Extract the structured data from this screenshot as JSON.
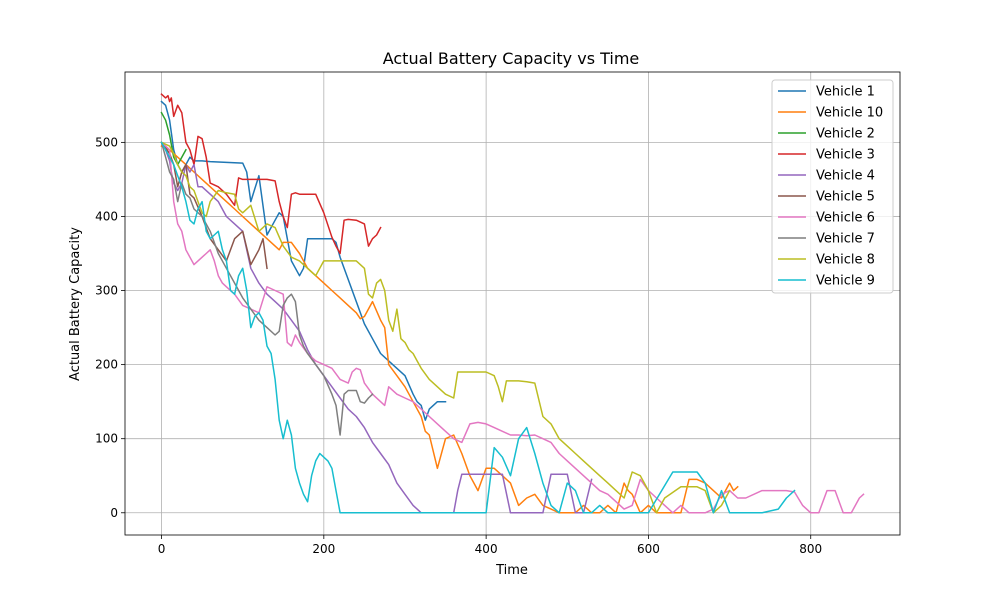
{
  "chart_data": {
    "type": "line",
    "title": "Actual Battery Capacity vs Time",
    "xlabel": "Time",
    "ylabel": "Actual Battery Capacity",
    "xlim": [
      -45,
      910
    ],
    "ylim": [
      -30,
      595
    ],
    "xticks": [
      0,
      200,
      400,
      600,
      800
    ],
    "yticks": [
      0,
      100,
      200,
      300,
      400,
      500
    ],
    "grid": true,
    "legend_position": "upper right",
    "series": [
      {
        "name": "Vehicle 1",
        "color": "#1f77b4",
        "x": [
          0,
          5,
          10,
          15,
          20,
          25,
          30,
          35,
          40,
          50,
          60,
          80,
          100,
          105,
          110,
          120,
          130,
          140,
          145,
          150,
          160,
          170,
          175,
          180,
          190,
          200,
          210,
          215,
          220,
          240,
          250,
          260,
          270,
          280,
          300,
          310,
          315,
          320,
          325,
          330,
          340,
          350
        ],
        "y": [
          555,
          550,
          530,
          490,
          470,
          460,
          470,
          480,
          475,
          475,
          474,
          473,
          472,
          460,
          420,
          455,
          375,
          395,
          405,
          400,
          340,
          320,
          330,
          370,
          370,
          370,
          370,
          365,
          345,
          285,
          255,
          235,
          215,
          205,
          185,
          160,
          150,
          145,
          125,
          140,
          150,
          150
        ]
      },
      {
        "name": "Vehicle 10",
        "color": "#ff7f0e",
        "x": [
          0,
          10,
          20,
          30,
          40,
          50,
          60,
          70,
          80,
          90,
          100,
          110,
          120,
          130,
          140,
          145,
          150,
          160,
          170,
          180,
          190,
          200,
          210,
          220,
          230,
          240,
          245,
          250,
          260,
          270,
          275,
          280,
          290,
          300,
          310,
          320,
          325,
          330,
          340,
          350,
          360,
          370,
          380,
          390,
          400,
          410,
          420,
          430,
          440,
          450,
          460,
          470,
          480,
          490,
          500,
          510,
          520,
          530,
          540,
          550,
          560,
          570,
          575,
          580,
          590,
          600,
          610,
          620,
          630,
          640,
          650,
          660,
          670,
          680,
          690,
          700,
          705,
          710
        ],
        "y": [
          495,
          490,
          480,
          470,
          460,
          450,
          440,
          430,
          420,
          410,
          400,
          390,
          380,
          370,
          360,
          355,
          365,
          365,
          350,
          330,
          320,
          310,
          300,
          290,
          280,
          270,
          262,
          265,
          285,
          260,
          250,
          200,
          185,
          170,
          150,
          130,
          110,
          105,
          60,
          100,
          105,
          80,
          50,
          30,
          60,
          60,
          50,
          40,
          10,
          20,
          25,
          10,
          5,
          0,
          0,
          0,
          10,
          0,
          0,
          10,
          0,
          40,
          30,
          25,
          0,
          10,
          0,
          0,
          0,
          0,
          45,
          45,
          40,
          30,
          20,
          40,
          30,
          35
        ]
      },
      {
        "name": "Vehicle 2",
        "color": "#2ca02c",
        "x": [
          0,
          5,
          10,
          15,
          20,
          25,
          30
        ],
        "y": [
          540,
          530,
          510,
          480,
          470,
          480,
          490
        ]
      },
      {
        "name": "Vehicle 3",
        "color": "#d62728",
        "x": [
          0,
          5,
          8,
          10,
          12,
          15,
          20,
          25,
          30,
          35,
          40,
          45,
          50,
          55,
          60,
          70,
          80,
          90,
          95,
          100,
          110,
          120,
          130,
          140,
          145,
          150,
          155,
          160,
          165,
          170,
          180,
          190,
          200,
          210,
          215,
          220,
          225,
          230,
          240,
          250,
          255,
          260,
          265,
          270
        ],
        "y": [
          565,
          560,
          563,
          555,
          560,
          535,
          550,
          540,
          500,
          490,
          470,
          508,
          505,
          480,
          445,
          440,
          430,
          415,
          452,
          450,
          450,
          450,
          450,
          448,
          420,
          400,
          385,
          430,
          432,
          430,
          430,
          430,
          405,
          372,
          360,
          350,
          395,
          396,
          395,
          390,
          360,
          370,
          375,
          385
        ]
      },
      {
        "name": "Vehicle 4",
        "color": "#9467bd",
        "x": [
          0,
          5,
          10,
          12,
          15,
          20,
          25,
          30,
          35,
          40,
          45,
          50,
          60,
          70,
          80,
          90,
          100,
          110,
          120,
          130,
          140,
          150,
          160,
          170,
          180,
          190,
          200,
          210,
          220,
          230,
          240,
          250,
          260,
          270,
          280,
          290,
          300,
          310,
          320,
          330,
          350,
          360,
          365,
          370,
          380,
          390,
          400,
          410,
          420,
          430,
          440,
          450,
          460,
          470,
          480,
          490,
          500,
          510,
          520,
          530
        ],
        "y": [
          500,
          490,
          475,
          460,
          445,
          435,
          445,
          470,
          460,
          470,
          440,
          440,
          430,
          420,
          400,
          390,
          380,
          330,
          310,
          295,
          285,
          275,
          260,
          245,
          220,
          200,
          185,
          170,
          155,
          140,
          130,
          115,
          95,
          80,
          65,
          40,
          25,
          10,
          0,
          0,
          0,
          0,
          30,
          52,
          52,
          52,
          52,
          52,
          52,
          0,
          0,
          0,
          0,
          0,
          52,
          52,
          52,
          0,
          0,
          45
        ]
      },
      {
        "name": "Vehicle 5",
        "color": "#8c564b",
        "x": [
          0,
          10,
          15,
          20,
          25,
          30,
          35,
          40,
          50,
          60,
          70,
          80,
          90,
          100,
          110,
          120,
          125,
          130
        ],
        "y": [
          500,
          485,
          470,
          440,
          460,
          470,
          430,
          425,
          400,
          370,
          355,
          340,
          370,
          380,
          335,
          355,
          370,
          330
        ]
      },
      {
        "name": "Vehicle 6",
        "color": "#e377c2",
        "x": [
          0,
          5,
          10,
          15,
          20,
          25,
          30,
          35,
          40,
          45,
          50,
          55,
          60,
          65,
          70,
          75,
          80,
          90,
          100,
          110,
          120,
          130,
          140,
          150,
          155,
          160,
          165,
          170,
          180,
          190,
          200,
          210,
          220,
          230,
          235,
          240,
          245,
          250,
          260,
          270,
          275,
          280,
          290,
          300,
          310,
          320,
          330,
          340,
          350,
          360,
          370,
          380,
          390,
          400,
          410,
          420,
          430,
          440,
          450,
          460,
          470,
          480,
          490,
          500,
          510,
          520,
          530,
          540,
          550,
          560,
          570,
          580,
          590,
          600,
          610,
          620,
          630,
          640,
          650,
          660,
          670,
          680,
          690,
          700,
          710,
          720,
          740,
          760,
          770,
          780,
          790,
          800,
          810,
          820,
          830,
          840,
          850,
          860,
          865
        ],
        "y": [
          500,
          495,
          490,
          420,
          390,
          380,
          355,
          345,
          335,
          340,
          345,
          350,
          355,
          340,
          320,
          310,
          305,
          295,
          280,
          275,
          270,
          305,
          300,
          295,
          230,
          225,
          240,
          230,
          215,
          205,
          200,
          195,
          180,
          175,
          190,
          195,
          193,
          175,
          160,
          150,
          145,
          170,
          160,
          155,
          150,
          140,
          130,
          120,
          110,
          100,
          95,
          120,
          122,
          120,
          115,
          110,
          105,
          105,
          104,
          105,
          100,
          95,
          80,
          70,
          60,
          50,
          40,
          30,
          25,
          15,
          5,
          10,
          45,
          30,
          20,
          10,
          0,
          10,
          0,
          0,
          0,
          5,
          25,
          30,
          20,
          20,
          30,
          30,
          30,
          28,
          10,
          0,
          0,
          30,
          30,
          0,
          0,
          20,
          25
        ]
      },
      {
        "name": "Vehicle 7",
        "color": "#7f7f7f",
        "x": [
          0,
          5,
          10,
          15,
          20,
          25,
          30,
          35,
          40,
          50,
          60,
          70,
          80,
          90,
          100,
          110,
          120,
          130,
          140,
          145,
          150,
          155,
          160,
          165,
          170,
          175,
          180,
          190,
          200,
          210,
          215,
          220,
          225,
          230,
          240,
          245,
          250,
          255,
          260
        ],
        "y": [
          500,
          480,
          460,
          450,
          420,
          445,
          430,
          425,
          410,
          400,
          380,
          350,
          330,
          310,
          290,
          275,
          260,
          250,
          240,
          245,
          280,
          290,
          295,
          285,
          240,
          225,
          215,
          200,
          185,
          160,
          145,
          105,
          160,
          165,
          165,
          150,
          148,
          155,
          160
        ]
      },
      {
        "name": "Vehicle 8",
        "color": "#bcbd22",
        "x": [
          0,
          10,
          15,
          20,
          25,
          30,
          35,
          40,
          45,
          50,
          55,
          60,
          70,
          80,
          90,
          95,
          100,
          110,
          120,
          130,
          140,
          150,
          160,
          170,
          180,
          190,
          200,
          220,
          240,
          250,
          255,
          260,
          265,
          270,
          275,
          280,
          285,
          290,
          295,
          300,
          305,
          310,
          315,
          320,
          330,
          340,
          350,
          360,
          365,
          370,
          380,
          390,
          400,
          410,
          415,
          420,
          425,
          430,
          440,
          450,
          460,
          470,
          480,
          490,
          500,
          510,
          520,
          530,
          540,
          550,
          560,
          570,
          580,
          590,
          600,
          610,
          620,
          640,
          660,
          670,
          680,
          690,
          700
        ],
        "y": [
          500,
          495,
          485,
          470,
          460,
          455,
          440,
          435,
          420,
          405,
          400,
          420,
          435,
          432,
          430,
          410,
          405,
          415,
          380,
          390,
          385,
          360,
          345,
          340,
          330,
          320,
          340,
          340,
          340,
          330,
          295,
          290,
          310,
          315,
          300,
          260,
          245,
          275,
          235,
          230,
          220,
          215,
          205,
          195,
          180,
          170,
          160,
          155,
          190,
          190,
          190,
          190,
          190,
          185,
          170,
          150,
          178,
          178,
          178,
          177,
          175,
          130,
          120,
          100,
          90,
          80,
          70,
          60,
          50,
          40,
          30,
          20,
          55,
          50,
          30,
          0,
          20,
          35,
          35,
          30,
          0,
          10,
          30
        ]
      },
      {
        "name": "Vehicle 9",
        "color": "#17becf",
        "x": [
          0,
          10,
          15,
          20,
          25,
          30,
          35,
          40,
          45,
          50,
          55,
          60,
          65,
          70,
          75,
          80,
          85,
          90,
          95,
          100,
          105,
          110,
          115,
          120,
          125,
          130,
          135,
          140,
          145,
          150,
          155,
          160,
          165,
          170,
          175,
          180,
          185,
          190,
          195,
          200,
          205,
          210,
          215,
          220,
          230,
          260,
          300,
          360,
          400,
          410,
          420,
          430,
          440,
          450,
          460,
          470,
          480,
          490,
          500,
          510,
          520,
          530,
          540,
          550,
          560,
          570,
          580,
          600,
          630,
          640,
          660,
          670,
          680,
          690,
          700,
          710,
          740,
          760,
          770,
          780
        ],
        "y": [
          500,
          480,
          470,
          455,
          440,
          420,
          395,
          390,
          410,
          420,
          380,
          370,
          375,
          380,
          355,
          340,
          300,
          295,
          320,
          330,
          300,
          250,
          265,
          270,
          260,
          225,
          215,
          180,
          125,
          100,
          125,
          105,
          60,
          40,
          25,
          15,
          50,
          70,
          80,
          75,
          70,
          60,
          30,
          0,
          0,
          0,
          0,
          0,
          0,
          88,
          75,
          50,
          100,
          115,
          80,
          40,
          10,
          0,
          40,
          30,
          0,
          0,
          10,
          0,
          0,
          0,
          0,
          0,
          55,
          55,
          55,
          40,
          0,
          30,
          0,
          0,
          0,
          5,
          20,
          30
        ]
      }
    ]
  }
}
